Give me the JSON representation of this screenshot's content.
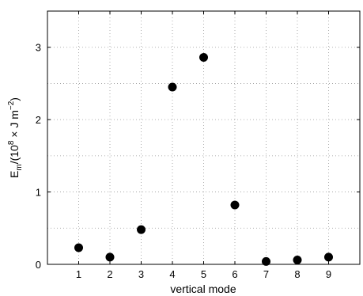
{
  "chart_data": {
    "type": "scatter",
    "xlabel": "vertical mode",
    "ylabel_main": "E",
    "ylabel_sub": "m",
    "ylabel_rest": "/(10",
    "ylabel_exp": "8",
    "ylabel_unit": " × J m",
    "ylabel_unit_exp": "−2",
    "ylabel_close": ")",
    "x": [
      1,
      2,
      3,
      4,
      5,
      6,
      7,
      8,
      9
    ],
    "y": [
      0.23,
      0.1,
      0.48,
      2.45,
      2.86,
      0.82,
      0.04,
      0.06,
      0.1
    ],
    "xlim": [
      0,
      10
    ],
    "ylim": [
      0,
      3.5
    ],
    "xticks": [
      "1",
      "2",
      "3",
      "4",
      "5",
      "6",
      "7",
      "8",
      "9"
    ],
    "yticks": [
      "0",
      "1",
      "2",
      "3"
    ],
    "grid": true,
    "marker_color": "#000000"
  }
}
